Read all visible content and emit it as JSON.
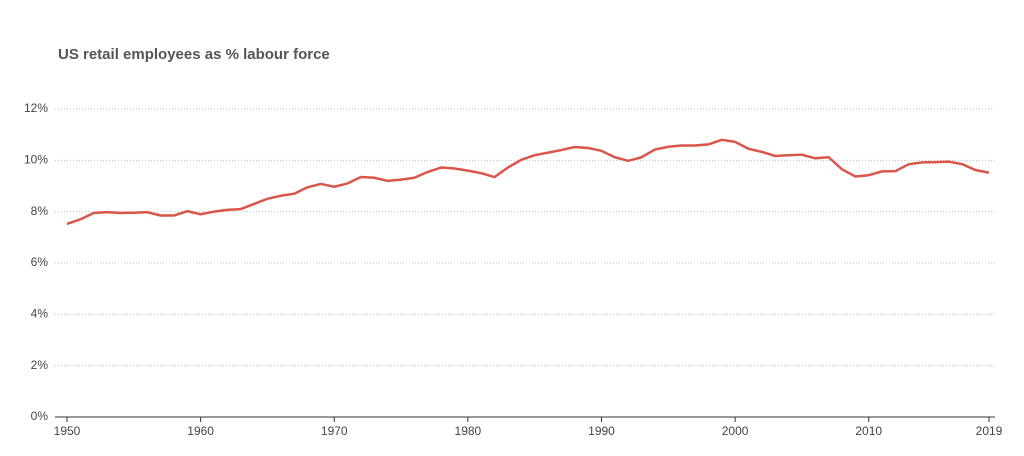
{
  "chart_data": {
    "type": "line",
    "title": "US retail employees as % labour force",
    "x": [
      1950,
      1951,
      1952,
      1953,
      1954,
      1955,
      1956,
      1957,
      1958,
      1959,
      1960,
      1961,
      1962,
      1963,
      1964,
      1965,
      1966,
      1967,
      1968,
      1969,
      1970,
      1971,
      1972,
      1973,
      1974,
      1975,
      1976,
      1977,
      1978,
      1979,
      1980,
      1981,
      1982,
      1983,
      1984,
      1985,
      1986,
      1987,
      1988,
      1989,
      1990,
      1991,
      1992,
      1993,
      1994,
      1995,
      1996,
      1997,
      1998,
      1999,
      2000,
      2001,
      2002,
      2003,
      2004,
      2005,
      2006,
      2007,
      2008,
      2009,
      2010,
      2011,
      2012,
      2013,
      2014,
      2015,
      2016,
      2017,
      2018,
      2019
    ],
    "series": [
      {
        "color": "#d9574a",
        "values": [
          7.52,
          7.7,
          7.95,
          7.98,
          7.95,
          7.96,
          7.98,
          7.85,
          7.85,
          8.02,
          7.9,
          8.0,
          8.07,
          8.1,
          8.3,
          8.5,
          8.62,
          8.7,
          8.95,
          9.08,
          8.97,
          9.1,
          9.35,
          9.32,
          9.2,
          9.25,
          9.32,
          9.55,
          9.72,
          9.68,
          9.6,
          9.5,
          9.35,
          9.72,
          10.02,
          10.2,
          10.3,
          10.4,
          10.52,
          10.48,
          10.37,
          10.12,
          9.98,
          10.12,
          10.42,
          10.53,
          10.58,
          10.58,
          10.62,
          10.8,
          10.72,
          10.45,
          10.33,
          10.17,
          10.2,
          10.22,
          10.08,
          10.12,
          9.65,
          9.37,
          9.42,
          9.57,
          9.58,
          9.85,
          9.92,
          9.93,
          9.95,
          9.85,
          9.62,
          9.52
        ]
      }
    ],
    "xlim": [
      1950,
      2019
    ],
    "xticks": [
      1950,
      1960,
      1970,
      1980,
      1990,
      2000,
      2010,
      2019
    ],
    "ylim": [
      0,
      12
    ],
    "yticks": [
      {
        "value": 0,
        "label": "0%"
      },
      {
        "value": 2,
        "label": "2%"
      },
      {
        "value": 4,
        "label": "4%"
      },
      {
        "value": 6,
        "label": "6%"
      },
      {
        "value": 8,
        "label": "8%"
      },
      {
        "value": 10,
        "label": "10%"
      },
      {
        "value": 12,
        "label": "12%"
      }
    ],
    "grid": true
  }
}
